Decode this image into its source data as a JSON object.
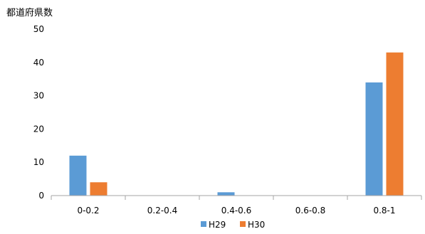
{
  "chart_data": {
    "type": "bar",
    "title": "",
    "xlabel": "",
    "ylabel": "都道府県数",
    "categories": [
      "0-0.2",
      "0.2-0.4",
      "0.4-0.6",
      "0.6-0.8",
      "0.8-1"
    ],
    "series": [
      {
        "name": "H29",
        "color": "#5b9bd5",
        "values": [
          12,
          0,
          1,
          0,
          34
        ]
      },
      {
        "name": "H30",
        "color": "#ed7d31",
        "values": [
          4,
          0,
          0,
          0,
          43
        ]
      }
    ],
    "ylim": [
      0,
      50
    ],
    "yticks": [
      0,
      10,
      20,
      30,
      40,
      50
    ],
    "grid": false,
    "legend": "bottom"
  }
}
